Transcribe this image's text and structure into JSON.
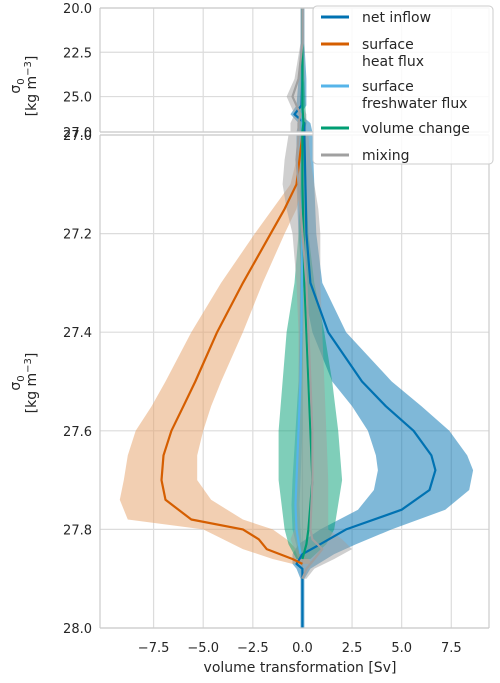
{
  "chart_data": {
    "type": "line",
    "xlabel": "volume transformation [Sv]",
    "xlim": [
      -10.2,
      9.4
    ],
    "xticks": [
      -7.5,
      -5.0,
      -2.5,
      0.0,
      2.5,
      5.0,
      7.5
    ],
    "xtick_labels": [
      "−7.5",
      "−5.0",
      "−2.5",
      "0.0",
      "2.5",
      "5.0",
      "7.5"
    ],
    "grid": true,
    "legend_position": "top-right",
    "panels": [
      {
        "name": "upper",
        "ylabel": "σ0 [kg m−3]",
        "ylim": [
          20.0,
          27.0
        ],
        "y_inverted": true,
        "yticks": [
          20.0,
          22.5,
          25.0,
          27.0
        ],
        "ytick_labels": [
          "20.0",
          "22.5",
          "25.0",
          "27.0"
        ]
      },
      {
        "name": "lower",
        "ylabel": "σ0 [kg m−3]",
        "ylim": [
          27.0,
          28.0
        ],
        "y_inverted": true,
        "yticks": [
          27.0,
          27.2,
          27.4,
          27.6,
          27.8,
          28.0
        ],
        "ytick_labels": [
          "27.0",
          "27.2",
          "27.4",
          "27.6",
          "27.8",
          "28.0"
        ]
      }
    ],
    "series": [
      {
        "name": "net inflow",
        "color": "#0072B2",
        "band_color": "#0072B2",
        "lower": {
          "y": [
            27.0,
            27.1,
            27.2,
            27.3,
            27.4,
            27.5,
            27.55,
            27.6,
            27.65,
            27.68,
            27.72,
            27.76,
            27.8,
            27.83,
            27.85,
            27.87,
            27.88,
            27.9,
            28.0
          ],
          "x": [
            0.1,
            0.15,
            0.2,
            0.4,
            1.3,
            3.0,
            4.2,
            5.6,
            6.5,
            6.7,
            6.4,
            5.0,
            2.2,
            0.9,
            0.0,
            -0.3,
            0.0,
            0.0,
            0.0
          ],
          "x_lo": [
            -0.3,
            -0.3,
            -0.2,
            0.0,
            0.5,
            1.5,
            2.5,
            3.3,
            3.7,
            3.8,
            3.6,
            2.8,
            0.9,
            -0.2,
            -0.5,
            -0.5,
            -0.3,
            -0.1,
            -0.1
          ],
          "x_hi": [
            0.5,
            0.6,
            0.7,
            1.0,
            2.2,
            4.5,
            6.0,
            7.4,
            8.3,
            8.6,
            8.4,
            7.2,
            4.5,
            2.7,
            1.6,
            0.8,
            0.4,
            0.1,
            0.1
          ]
        },
        "upper": {
          "y": [
            20.0,
            22.0,
            24.0,
            25.5,
            26.0,
            26.5,
            27.0
          ],
          "x": [
            0.0,
            0.0,
            0.0,
            -0.05,
            -0.4,
            0.1,
            0.1
          ],
          "x_lo": [
            -0.1,
            -0.1,
            -0.2,
            -0.3,
            -0.6,
            -0.2,
            -0.3
          ],
          "x_hi": [
            0.1,
            0.1,
            0.2,
            0.2,
            -0.1,
            0.4,
            0.5
          ]
        }
      },
      {
        "name": "surface\nheat flux",
        "color": "#D55E00",
        "band_color": "#E69F65",
        "lower": {
          "y": [
            27.0,
            27.1,
            27.15,
            27.2,
            27.3,
            27.4,
            27.5,
            27.55,
            27.6,
            27.65,
            27.7,
            27.74,
            27.78,
            27.8,
            27.82,
            27.84,
            27.86,
            27.87
          ],
          "x": [
            0.0,
            -0.3,
            -0.9,
            -1.6,
            -3.0,
            -4.3,
            -5.4,
            -6.0,
            -6.6,
            -7.0,
            -7.1,
            -6.9,
            -5.6,
            -3.0,
            -2.2,
            -1.8,
            -0.5,
            0.0
          ],
          "x_lo": [
            0.0,
            -0.6,
            -1.5,
            -2.4,
            -4.1,
            -5.6,
            -6.9,
            -7.6,
            -8.4,
            -8.8,
            -9.0,
            -9.2,
            -8.8,
            -5.0,
            -4.0,
            -3.0,
            -1.5,
            -0.5
          ],
          "x_hi": [
            0.2,
            0.0,
            -0.3,
            -0.9,
            -2.0,
            -3.0,
            -4.1,
            -4.6,
            -5.0,
            -5.3,
            -5.3,
            -4.6,
            -3.0,
            -1.5,
            -0.8,
            -0.3,
            0.3,
            0.5
          ]
        }
      },
      {
        "name": "surface\nfreshwater flux",
        "color": "#56B4E9",
        "band_color": "#56B4E9",
        "lower": {
          "y": [
            27.0,
            27.2,
            27.4,
            27.5,
            27.6,
            27.7,
            27.75,
            27.8,
            27.85
          ],
          "x": [
            0.0,
            0.0,
            -0.05,
            -0.1,
            -0.2,
            -0.3,
            -0.35,
            -0.3,
            -0.1
          ],
          "x_lo": [
            -0.1,
            -0.1,
            -0.15,
            -0.2,
            -0.35,
            -0.5,
            -0.55,
            -0.5,
            -0.2
          ],
          "x_hi": [
            0.1,
            0.1,
            0.05,
            0.0,
            0.0,
            -0.1,
            -0.15,
            -0.1,
            0.0
          ]
        },
        "upper": {
          "y": [
            20.0,
            22.0,
            24.0,
            25.5,
            26.5,
            27.0
          ],
          "x": [
            0.0,
            0.0,
            0.0,
            0.0,
            0.0,
            0.0
          ],
          "x_lo": [
            -0.05,
            -0.05,
            -0.05,
            -0.05,
            -0.05,
            -0.05
          ],
          "x_hi": [
            0.05,
            0.05,
            0.05,
            0.05,
            0.05,
            0.05
          ]
        }
      },
      {
        "name": "volume change",
        "color": "#009E73",
        "band_color": "#009E73",
        "lower": {
          "y": [
            27.0,
            27.1,
            27.2,
            27.3,
            27.4,
            27.5,
            27.6,
            27.7,
            27.8,
            27.83,
            27.86
          ],
          "x": [
            0.0,
            0.0,
            0.05,
            0.1,
            0.2,
            0.3,
            0.4,
            0.5,
            0.3,
            0.2,
            0.0
          ],
          "x_lo": [
            -0.1,
            -0.1,
            -0.2,
            -0.4,
            -0.8,
            -1.0,
            -1.2,
            -1.2,
            -0.9,
            -0.7,
            -0.3
          ],
          "x_hi": [
            0.1,
            0.2,
            0.3,
            0.6,
            1.1,
            1.5,
            1.8,
            2.0,
            1.6,
            1.2,
            0.4
          ]
        },
        "upper": {
          "y": [
            20.0,
            22.0,
            24.0,
            25.5,
            26.5,
            27.0
          ],
          "x": [
            0.0,
            0.0,
            0.0,
            0.0,
            0.05,
            0.0
          ],
          "x_lo": [
            -0.05,
            -0.05,
            -0.1,
            -0.1,
            -0.1,
            -0.1
          ],
          "x_hi": [
            0.05,
            0.05,
            0.1,
            0.15,
            0.2,
            0.1
          ]
        }
      },
      {
        "name": "mixing",
        "color": "#A0A0A0",
        "band_color": "#A0A0A0",
        "lower": {
          "y": [
            27.0,
            27.05,
            27.1,
            27.15,
            27.2,
            27.3,
            27.4,
            27.5,
            27.6,
            27.7,
            27.8,
            27.82,
            27.84,
            27.86,
            27.88,
            27.9
          ],
          "x": [
            -0.2,
            -0.3,
            -0.2,
            -0.1,
            0.0,
            0.2,
            0.3,
            0.4,
            0.5,
            0.5,
            0.4,
            0.5,
            1.0,
            0.6,
            0.2,
            0.0
          ],
          "x_lo": [
            -0.7,
            -0.9,
            -1.0,
            -0.8,
            -0.5,
            -0.3,
            -0.2,
            -0.2,
            -0.2,
            -0.3,
            -0.4,
            -0.6,
            -0.4,
            -0.2,
            -0.1,
            -0.1
          ],
          "x_hi": [
            0.3,
            0.4,
            0.6,
            0.8,
            0.9,
            0.9,
            1.0,
            1.1,
            1.2,
            1.3,
            1.3,
            2.0,
            2.5,
            1.6,
            0.6,
            0.2
          ]
        },
        "upper": {
          "y": [
            20.0,
            22.0,
            24.0,
            25.0,
            25.5,
            26.0,
            26.5,
            27.0
          ],
          "x": [
            0.0,
            0.0,
            -0.2,
            -0.5,
            -0.3,
            -0.1,
            -0.2,
            -0.2
          ],
          "x_lo": [
            -0.1,
            -0.1,
            -0.4,
            -0.8,
            -0.6,
            -0.4,
            -0.6,
            -0.6
          ],
          "x_hi": [
            0.1,
            0.1,
            0.1,
            -0.1,
            0.0,
            0.2,
            0.2,
            0.2
          ]
        }
      }
    ]
  }
}
